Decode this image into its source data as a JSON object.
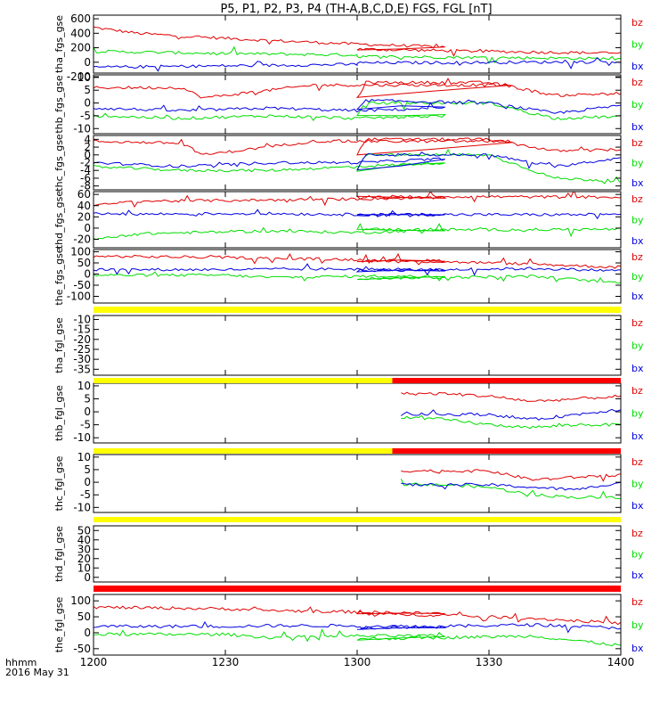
{
  "title": "P5, P1, P2, P3, P4 (TH-A,B,C,D,E) FGS, FGL [nT]",
  "x_axis": {
    "tick_labels": [
      "1200",
      "1230",
      "1300",
      "1330",
      "1400"
    ],
    "corner_line1": "hhmm",
    "corner_line2": "2016 May 31"
  },
  "colors": {
    "bz": "#e00000",
    "by": "#00dd00",
    "bx": "#0000e0",
    "bar_yellow": "#ffff00",
    "bar_red": "#ff0000"
  },
  "chart_data": [
    {
      "type": "line",
      "panel": "tha_fgs_gse",
      "ylabel": "tha_fgs_gse",
      "ylim": [
        -150,
        650
      ],
      "yticks": [
        "600",
        "400",
        "200",
        "0",
        "-200"
      ],
      "legend": [
        "bz",
        "by",
        "bx"
      ],
      "x": [
        1200,
        1400
      ],
      "series": [
        {
          "name": "bz",
          "x": [
            1200,
            1210,
            1220,
            1240,
            1260,
            1280,
            1300,
            1320,
            1340,
            1360,
            1380,
            1400
          ],
          "values": [
            480,
            400,
            360,
            300,
            250,
            210,
            180,
            160,
            140,
            125,
            115,
            110
          ]
        },
        {
          "name": "by",
          "x": [
            1200,
            1230,
            1260,
            1300,
            1340,
            1370,
            1400
          ],
          "values": [
            150,
            120,
            100,
            80,
            60,
            40,
            30
          ]
        },
        {
          "name": "bx",
          "x": [
            1200,
            1230,
            1260,
            1300,
            1340,
            1370,
            1400
          ],
          "values": [
            -70,
            -50,
            -30,
            -10,
            0,
            10,
            20
          ]
        }
      ]
    },
    {
      "type": "line",
      "panel": "thb_fgs_gse",
      "ylabel": "thb_fgs_gse",
      "ylim": [
        -12,
        11
      ],
      "yticks": [
        "10",
        "5",
        "0",
        "-5",
        "-10"
      ],
      "legend": [
        "bz",
        "by",
        "bx"
      ],
      "x": [
        1200,
        1400
      ],
      "series": [
        {
          "name": "bz",
          "x": [
            1200,
            1220,
            1225,
            1250,
            1295,
            1300,
            1302,
            1330,
            1345,
            1365,
            1385,
            1400
          ],
          "values": [
            6,
            6,
            2,
            7,
            7,
            2,
            8,
            8,
            3,
            4,
            3,
            3
          ]
        },
        {
          "name": "by",
          "x": [
            1200,
            1220,
            1240,
            1260,
            1280,
            1300,
            1302,
            1330,
            1345,
            1365,
            1385,
            1400
          ],
          "values": [
            -5,
            -6,
            -5,
            -6,
            -5,
            -5,
            0,
            0,
            -6,
            -5,
            -5,
            -6
          ]
        },
        {
          "name": "bx",
          "x": [
            1200,
            1220,
            1240,
            1260,
            1280,
            1300,
            1302,
            1330,
            1345,
            1365,
            1385,
            1400
          ],
          "values": [
            -2,
            -3,
            -2,
            -3,
            -2,
            -3,
            1,
            0,
            -4,
            0,
            -1,
            -2
          ]
        }
      ]
    },
    {
      "type": "line",
      "panel": "thc_fgs_gse",
      "ylabel": "thc_fgs_gse",
      "ylim": [
        -9,
        5
      ],
      "yticks": [
        "4",
        "2",
        "0",
        "-2",
        "-4",
        "-6",
        "-8"
      ],
      "legend": [
        "bz",
        "by",
        "bx"
      ],
      "x": [
        1200,
        1400
      ],
      "series": [
        {
          "name": "bz",
          "x": [
            1200,
            1220,
            1225,
            1250,
            1295,
            1300,
            1302,
            1330,
            1345,
            1365,
            1385,
            1400
          ],
          "values": [
            3.5,
            3,
            0,
            3.5,
            3.5,
            0,
            4,
            4,
            1,
            1.5,
            2,
            2
          ]
        },
        {
          "name": "by",
          "x": [
            1200,
            1220,
            1240,
            1260,
            1280,
            1300,
            1302,
            1330,
            1345,
            1365,
            1385,
            1400
          ],
          "values": [
            -3,
            -4,
            -4,
            -3,
            -2,
            -4,
            0,
            0,
            -6,
            -7,
            -6,
            -6
          ]
        },
        {
          "name": "bx",
          "x": [
            1200,
            1220,
            1240,
            1260,
            1280,
            1300,
            1302,
            1330,
            1345,
            1365,
            1385,
            1400
          ],
          "values": [
            -2,
            -3,
            -2,
            -2,
            -1,
            -4,
            0,
            0,
            -3,
            0,
            -1,
            -2
          ]
        }
      ]
    },
    {
      "type": "line",
      "panel": "thd_fgs_gse",
      "ylabel": "thd_fgs_gse",
      "ylim": [
        -35,
        65
      ],
      "yticks": [
        "60",
        "40",
        "20",
        "0",
        "-20"
      ],
      "legend": [
        "bz",
        "by",
        "bx"
      ],
      "x": [
        1200,
        1400
      ],
      "series": [
        {
          "name": "bz",
          "x": [
            1200,
            1210,
            1240,
            1260,
            1280,
            1300,
            1330,
            1360,
            1400
          ],
          "values": [
            40,
            48,
            50,
            52,
            54,
            56,
            56,
            55,
            54
          ]
        },
        {
          "name": "by",
          "x": [
            1200,
            1210,
            1240,
            1260,
            1280,
            1300,
            1330,
            1360,
            1400
          ],
          "values": [
            -20,
            -10,
            -5,
            -8,
            -3,
            -2,
            -3,
            -2,
            -4
          ]
        },
        {
          "name": "bx",
          "x": [
            1200,
            1210,
            1240,
            1260,
            1280,
            1300,
            1330,
            1360,
            1400
          ],
          "values": [
            25,
            25,
            26,
            24,
            24,
            24,
            24,
            24,
            24
          ]
        }
      ]
    },
    {
      "type": "line",
      "panel": "the_fgs_gse",
      "ylabel": "the_fgs_gse",
      "ylim": [
        -130,
        110
      ],
      "yticks": [
        "100",
        "50",
        "0",
        "-50",
        "-100"
      ],
      "legend": [
        "bz",
        "by",
        "bx"
      ],
      "x": [
        1200,
        1400
      ],
      "series": [
        {
          "name": "bz",
          "x": [
            1200,
            1230,
            1240,
            1260,
            1280,
            1300,
            1320,
            1340,
            1360,
            1380,
            1400
          ],
          "values": [
            80,
            75,
            70,
            65,
            60,
            60,
            55,
            45,
            30,
            20,
            15
          ]
        },
        {
          "name": "by",
          "x": [
            1200,
            1230,
            1240,
            1260,
            1280,
            1300,
            1320,
            1340,
            1360,
            1380,
            1400
          ],
          "values": [
            -5,
            -5,
            -15,
            -10,
            -10,
            -20,
            -15,
            -10,
            -40,
            -50,
            -40
          ]
        },
        {
          "name": "bx",
          "x": [
            1200,
            1230,
            1240,
            1260,
            1280,
            1300,
            1320,
            1340,
            1360,
            1380,
            1400
          ],
          "values": [
            20,
            20,
            22,
            22,
            18,
            15,
            20,
            25,
            15,
            10,
            15
          ]
        }
      ]
    },
    {
      "type": "line",
      "panel": "tha_fgl_gse",
      "ylabel": "tha_fgl_gse",
      "ylim": [
        -38,
        -8
      ],
      "yticks": [
        "-10",
        "-15",
        "-20",
        "-25",
        "-30",
        "-35"
      ],
      "legend": [
        "bz",
        "by",
        "bx"
      ],
      "x": [
        1200,
        1400
      ],
      "series": []
    },
    {
      "type": "line",
      "panel": "thb_fgl_gse",
      "ylabel": "thb_fgl_gse",
      "ylim": [
        -12,
        11
      ],
      "yticks": [
        "10",
        "5",
        "0",
        "-5",
        "-10"
      ],
      "legend": [
        "bz",
        "by",
        "bx"
      ],
      "x": [
        1200,
        1400
      ],
      "series": [
        {
          "name": "bz",
          "x": [
            1310,
            1320,
            1330,
            1340,
            1350,
            1360,
            1370,
            1380,
            1390,
            1400
          ],
          "values": [
            7,
            7,
            6,
            4,
            5,
            6,
            5,
            4,
            4,
            3
          ]
        },
        {
          "name": "by",
          "x": [
            1310,
            1320,
            1330,
            1340,
            1350,
            1360,
            1370,
            1380,
            1390,
            1400
          ],
          "values": [
            -2,
            -3,
            -5,
            -6,
            -5,
            -5,
            -4,
            -4,
            -3,
            -4
          ]
        },
        {
          "name": "bx",
          "x": [
            1310,
            1320,
            1330,
            1340,
            1350,
            1360,
            1370,
            1380,
            1390,
            1400
          ],
          "values": [
            -1,
            -1,
            -1,
            -3,
            -1,
            1,
            0,
            0,
            -1,
            -1
          ]
        }
      ]
    },
    {
      "type": "line",
      "panel": "thc_fgl_gse",
      "ylabel": "thc_fgl_gse",
      "ylim": [
        -12,
        11
      ],
      "yticks": [
        "10",
        "5",
        "0",
        "-5",
        "-10"
      ],
      "legend": [
        "bz",
        "by",
        "bx"
      ],
      "x": [
        1200,
        1400
      ],
      "series": [
        {
          "name": "bz",
          "x": [
            1310,
            1320,
            1330,
            1340,
            1350,
            1360,
            1370,
            1380,
            1390,
            1400
          ],
          "values": [
            4.5,
            4.5,
            4.5,
            1,
            2,
            3,
            2,
            1.5,
            1,
            0
          ]
        },
        {
          "name": "by",
          "x": [
            1310,
            1320,
            1330,
            1340,
            1350,
            1360,
            1370,
            1380,
            1390,
            1400
          ],
          "values": [
            -1,
            -1,
            -2,
            -5,
            -6,
            -6,
            -5,
            -4,
            -3,
            -3
          ]
        },
        {
          "name": "bx",
          "x": [
            1310,
            1320,
            1330,
            1340,
            1350,
            1360,
            1370,
            1380,
            1390,
            1400
          ],
          "values": [
            -1,
            -1,
            -1,
            -2,
            -3,
            0,
            -1,
            -1,
            -2,
            -1
          ]
        }
      ]
    },
    {
      "type": "line",
      "panel": "thd_fgl_gse",
      "ylabel": "thd_fgl_gse",
      "ylim": [
        -5,
        55
      ],
      "yticks": [
        "50",
        "40",
        "30",
        "20",
        "10",
        "0"
      ],
      "legend": [
        "bz",
        "by",
        "bx"
      ],
      "x": [
        1200,
        1400
      ],
      "series": []
    },
    {
      "type": "line",
      "panel": "the_fgl_gse",
      "ylabel": "the_fgl_gse",
      "ylim": [
        -70,
        120
      ],
      "yticks": [
        "100",
        "50",
        "0",
        "-50"
      ],
      "legend": [
        "bz",
        "by",
        "bx"
      ],
      "x": [
        1200,
        1400
      ],
      "series": [
        {
          "name": "bz",
          "x": [
            1200,
            1230,
            1240,
            1260,
            1280,
            1300,
            1320,
            1340,
            1360,
            1380,
            1400
          ],
          "values": [
            80,
            75,
            70,
            65,
            60,
            60,
            55,
            45,
            30,
            20,
            15
          ]
        },
        {
          "name": "by",
          "x": [
            1200,
            1230,
            1240,
            1260,
            1280,
            1300,
            1320,
            1340,
            1360,
            1380,
            1400
          ],
          "values": [
            -5,
            -5,
            -15,
            -10,
            -10,
            -20,
            -15,
            -10,
            -40,
            -50,
            -40
          ]
        },
        {
          "name": "bx",
          "x": [
            1200,
            1230,
            1240,
            1260,
            1280,
            1300,
            1320,
            1340,
            1360,
            1380,
            1400
          ],
          "values": [
            20,
            20,
            22,
            22,
            18,
            15,
            20,
            25,
            15,
            10,
            15
          ]
        }
      ]
    }
  ],
  "status_bars": [
    {
      "segments": [
        {
          "from": 1200,
          "to": 1400,
          "color": "yellow"
        }
      ]
    },
    {
      "segments": [
        {
          "from": 1200,
          "to": 1308,
          "color": "yellow"
        },
        {
          "from": 1308,
          "to": 1400,
          "color": "red"
        }
      ]
    },
    {
      "segments": [
        {
          "from": 1200,
          "to": 1308,
          "color": "yellow"
        },
        {
          "from": 1308,
          "to": 1400,
          "color": "red"
        }
      ]
    },
    {
      "segments": [
        {
          "from": 1200,
          "to": 1400,
          "color": "yellow"
        }
      ]
    },
    {
      "segments": [
        {
          "from": 1200,
          "to": 1400,
          "color": "red"
        }
      ]
    }
  ]
}
